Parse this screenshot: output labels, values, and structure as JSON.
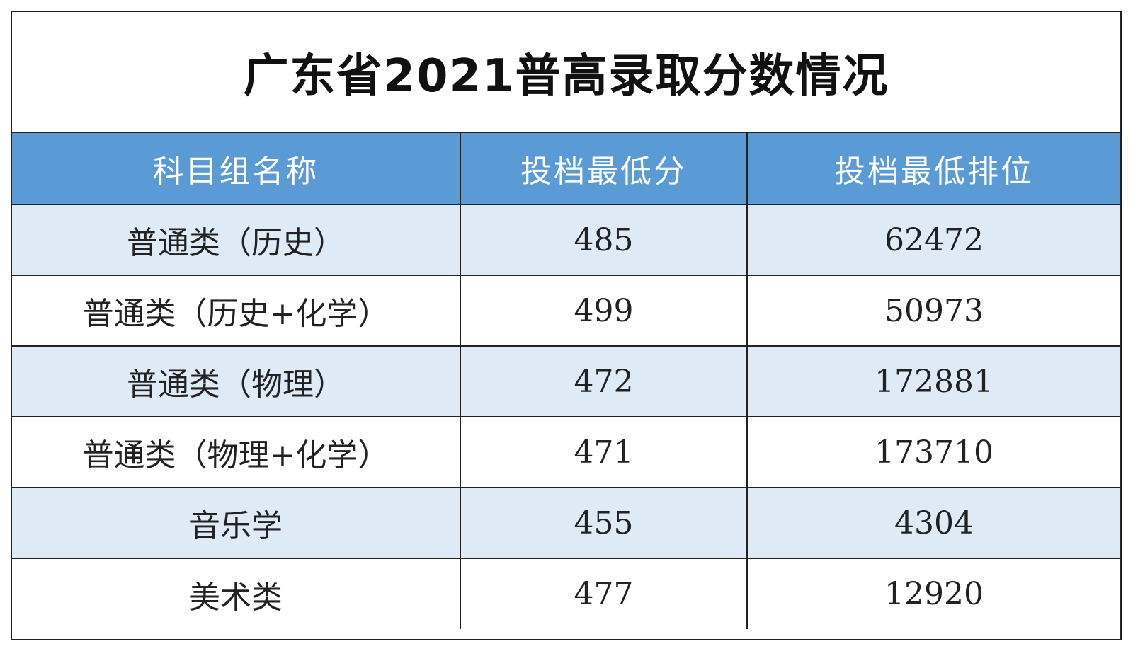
{
  "title": "广东省2021普高录取分数情况",
  "header": {
    "col1": "科目组名称",
    "col2": "投档最低分",
    "col3": "投档最低排位"
  },
  "colors": {
    "header_bg": "#5b9bd5",
    "band_bg": "#deebf7",
    "border": "#222222"
  },
  "rows": [
    {
      "group": "普通类（历史）",
      "min_score": "485",
      "min_rank": "62472"
    },
    {
      "group": "普通类（历史+化学）",
      "min_score": "499",
      "min_rank": "50973"
    },
    {
      "group": "普通类（物理）",
      "min_score": "472",
      "min_rank": "172881"
    },
    {
      "group": "普通类（物理+化学）",
      "min_score": "471",
      "min_rank": "173710"
    },
    {
      "group": "音乐学",
      "min_score": "455",
      "min_rank": "4304"
    },
    {
      "group": "美术类",
      "min_score": "477",
      "min_rank": "12920"
    }
  ]
}
